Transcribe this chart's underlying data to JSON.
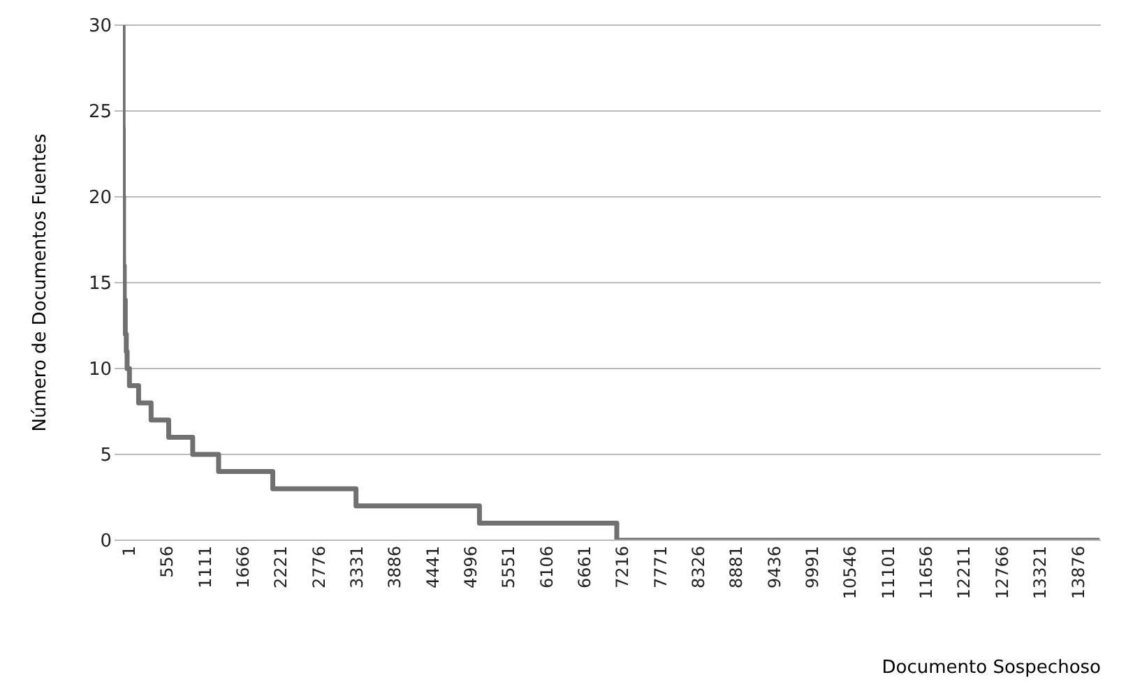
{
  "chart_data": {
    "type": "step",
    "xlabel": "Documento Sospechoso",
    "ylabel": "Número de Documentos Fuentes",
    "x": [
      1,
      3,
      6,
      10,
      20,
      35,
      50,
      62,
      96,
      230,
      413,
      670,
      1021,
      1400,
      2192,
      3409,
      5214,
      7222,
      14280
    ],
    "series": [
      {
        "color": "#707070",
        "values": [
          30,
          24,
          20,
          16,
          14,
          12,
          11,
          10,
          9,
          8,
          7,
          6,
          5,
          4,
          3,
          2,
          1,
          0,
          0
        ]
      }
    ],
    "xlim": [
      1,
      14300
    ],
    "xticks": [
      1,
      556,
      1111,
      1666,
      2221,
      2776,
      3331,
      3886,
      4441,
      4996,
      5551,
      6106,
      6661,
      7216,
      7771,
      8326,
      8881,
      9436,
      9991,
      10546,
      11101,
      11656,
      12211,
      12766,
      13321,
      13876
    ],
    "ylim": [
      0,
      30
    ],
    "yticks": [
      0,
      5,
      10,
      15,
      20,
      25,
      30
    ],
    "grid": "y",
    "marker": "none",
    "line_style": "solid"
  }
}
